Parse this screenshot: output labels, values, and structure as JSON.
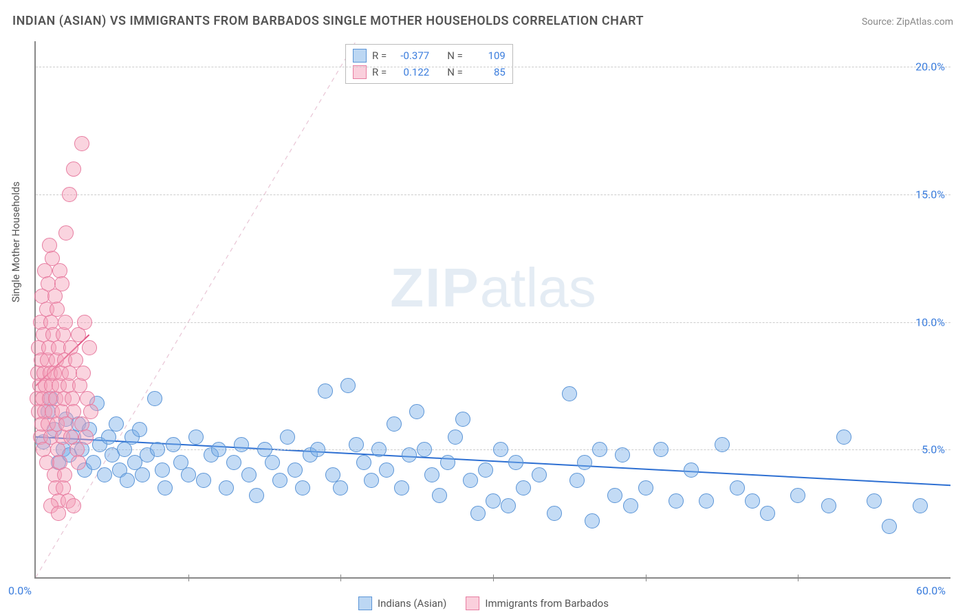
{
  "title": "INDIAN (ASIAN) VS IMMIGRANTS FROM BARBADOS SINGLE MOTHER HOUSEHOLDS CORRELATION CHART",
  "source": "Source: ZipAtlas.com",
  "ylabel": "Single Mother Households",
  "watermark_bold": "ZIP",
  "watermark_rest": "atlas",
  "chart": {
    "type": "scatter",
    "x_domain": [
      0,
      60
    ],
    "y_domain": [
      0,
      21
    ],
    "x_ticks_major": [
      0,
      60
    ],
    "x_ticks_minor": [
      10,
      20,
      30,
      40,
      50
    ],
    "x_tick_labels": {
      "0": "0.0%",
      "60": "60.0%"
    },
    "y_ticks": [
      5,
      10,
      15,
      20
    ],
    "y_tick_labels": {
      "5": "5.0%",
      "10": "10.0%",
      "15": "15.0%",
      "20": "20.0%"
    },
    "background_color": "#ffffff",
    "grid_color": "#cccccc",
    "axis_color": "#888888",
    "tick_label_color": "#3b7ddd",
    "marker_radius": 10,
    "series": [
      {
        "name": "Indians (Asian)",
        "key": "blue",
        "fill_color": "rgba(122,176,232,0.45)",
        "stroke_color": "#5a94d6",
        "R": "-0.377",
        "N": "109",
        "trend": {
          "x1": 0,
          "y1": 5.5,
          "x2": 60,
          "y2": 3.6,
          "color": "#2d6fd2",
          "width": 2
        },
        "diag": {
          "x1": 0,
          "y1": 0,
          "x2": 21,
          "y2": 21,
          "color": "#a8c6e8",
          "dash": true
        },
        "points": [
          [
            0.5,
            5.3
          ],
          [
            0.8,
            6.5
          ],
          [
            1.0,
            7.0
          ],
          [
            1.2,
            5.8
          ],
          [
            1.5,
            4.5
          ],
          [
            1.8,
            5.0
          ],
          [
            2.0,
            6.2
          ],
          [
            2.2,
            4.8
          ],
          [
            2.5,
            5.5
          ],
          [
            2.8,
            6.0
          ],
          [
            3.0,
            5.0
          ],
          [
            3.2,
            4.2
          ],
          [
            3.5,
            5.8
          ],
          [
            3.8,
            4.5
          ],
          [
            4.0,
            6.8
          ],
          [
            4.2,
            5.2
          ],
          [
            4.5,
            4.0
          ],
          [
            4.8,
            5.5
          ],
          [
            5.0,
            4.8
          ],
          [
            5.3,
            6.0
          ],
          [
            5.5,
            4.2
          ],
          [
            5.8,
            5.0
          ],
          [
            6.0,
            3.8
          ],
          [
            6.3,
            5.5
          ],
          [
            6.5,
            4.5
          ],
          [
            6.8,
            5.8
          ],
          [
            7.0,
            4.0
          ],
          [
            7.3,
            4.8
          ],
          [
            7.8,
            7.0
          ],
          [
            8.0,
            5.0
          ],
          [
            8.3,
            4.2
          ],
          [
            8.5,
            3.5
          ],
          [
            9.0,
            5.2
          ],
          [
            9.5,
            4.5
          ],
          [
            10.0,
            4.0
          ],
          [
            10.5,
            5.5
          ],
          [
            11.0,
            3.8
          ],
          [
            11.5,
            4.8
          ],
          [
            12.0,
            5.0
          ],
          [
            12.5,
            3.5
          ],
          [
            13.0,
            4.5
          ],
          [
            13.5,
            5.2
          ],
          [
            14.0,
            4.0
          ],
          [
            14.5,
            3.2
          ],
          [
            15.0,
            5.0
          ],
          [
            15.5,
            4.5
          ],
          [
            16.0,
            3.8
          ],
          [
            16.5,
            5.5
          ],
          [
            17.0,
            4.2
          ],
          [
            17.5,
            3.5
          ],
          [
            18.0,
            4.8
          ],
          [
            18.5,
            5.0
          ],
          [
            19.0,
            7.3
          ],
          [
            19.5,
            4.0
          ],
          [
            20.0,
            3.5
          ],
          [
            20.5,
            7.5
          ],
          [
            21.0,
            5.2
          ],
          [
            21.5,
            4.5
          ],
          [
            22.0,
            3.8
          ],
          [
            22.5,
            5.0
          ],
          [
            23.0,
            4.2
          ],
          [
            23.5,
            6.0
          ],
          [
            24.0,
            3.5
          ],
          [
            24.5,
            4.8
          ],
          [
            25.0,
            6.5
          ],
          [
            25.5,
            5.0
          ],
          [
            26.0,
            4.0
          ],
          [
            26.5,
            3.2
          ],
          [
            27.0,
            4.5
          ],
          [
            27.5,
            5.5
          ],
          [
            28.0,
            6.2
          ],
          [
            28.5,
            3.8
          ],
          [
            29.0,
            2.5
          ],
          [
            29.5,
            4.2
          ],
          [
            30.0,
            3.0
          ],
          [
            30.5,
            5.0
          ],
          [
            31.0,
            2.8
          ],
          [
            31.5,
            4.5
          ],
          [
            32.0,
            3.5
          ],
          [
            33.0,
            4.0
          ],
          [
            34.0,
            2.5
          ],
          [
            35.0,
            7.2
          ],
          [
            35.5,
            3.8
          ],
          [
            36.0,
            4.5
          ],
          [
            36.5,
            2.2
          ],
          [
            37.0,
            5.0
          ],
          [
            38.0,
            3.2
          ],
          [
            38.5,
            4.8
          ],
          [
            39.0,
            2.8
          ],
          [
            40.0,
            3.5
          ],
          [
            41.0,
            5.0
          ],
          [
            42.0,
            3.0
          ],
          [
            43.0,
            4.2
          ],
          [
            44.0,
            3.0
          ],
          [
            45.0,
            5.2
          ],
          [
            46.0,
            3.5
          ],
          [
            47.0,
            3.0
          ],
          [
            48.0,
            2.5
          ],
          [
            50.0,
            3.2
          ],
          [
            52.0,
            2.8
          ],
          [
            53.0,
            5.5
          ],
          [
            55.0,
            3.0
          ],
          [
            56.0,
            2.0
          ],
          [
            58.0,
            2.8
          ]
        ]
      },
      {
        "name": "Immigrants from Barbados",
        "key": "pink",
        "fill_color": "rgba(245,160,185,0.45)",
        "stroke_color": "#e77ca0",
        "R": "0.122",
        "N": "85",
        "trend": {
          "x1": 0,
          "y1": 7.5,
          "x2": 3.5,
          "y2": 9.5,
          "color": "#e05080",
          "width": 2
        },
        "diag": {
          "x1": 0,
          "y1": 0,
          "x2": 21,
          "y2": 21,
          "color": "#f2c2d0",
          "dash": true
        },
        "points": [
          [
            0.1,
            7.0
          ],
          [
            0.15,
            8.0
          ],
          [
            0.2,
            6.5
          ],
          [
            0.2,
            9.0
          ],
          [
            0.25,
            7.5
          ],
          [
            0.3,
            5.5
          ],
          [
            0.3,
            10.0
          ],
          [
            0.35,
            8.5
          ],
          [
            0.4,
            6.0
          ],
          [
            0.4,
            11.0
          ],
          [
            0.45,
            7.0
          ],
          [
            0.5,
            9.5
          ],
          [
            0.5,
            5.0
          ],
          [
            0.55,
            8.0
          ],
          [
            0.6,
            12.0
          ],
          [
            0.6,
            6.5
          ],
          [
            0.65,
            7.5
          ],
          [
            0.7,
            10.5
          ],
          [
            0.7,
            4.5
          ],
          [
            0.75,
            8.5
          ],
          [
            0.8,
            11.5
          ],
          [
            0.8,
            6.0
          ],
          [
            0.85,
            9.0
          ],
          [
            0.9,
            7.0
          ],
          [
            0.9,
            13.0
          ],
          [
            0.95,
            8.0
          ],
          [
            1.0,
            5.5
          ],
          [
            1.0,
            10.0
          ],
          [
            1.05,
            7.5
          ],
          [
            1.1,
            12.5
          ],
          [
            1.1,
            6.5
          ],
          [
            1.15,
            9.5
          ],
          [
            1.2,
            8.0
          ],
          [
            1.2,
            4.0
          ],
          [
            1.25,
            11.0
          ],
          [
            1.3,
            7.0
          ],
          [
            1.3,
            3.5
          ],
          [
            1.35,
            8.5
          ],
          [
            1.4,
            6.0
          ],
          [
            1.4,
            10.5
          ],
          [
            1.45,
            5.0
          ],
          [
            1.5,
            9.0
          ],
          [
            1.5,
            3.0
          ],
          [
            1.55,
            7.5
          ],
          [
            1.6,
            12.0
          ],
          [
            1.6,
            4.5
          ],
          [
            1.65,
            8.0
          ],
          [
            1.7,
            6.5
          ],
          [
            1.7,
            11.5
          ],
          [
            1.75,
            5.5
          ],
          [
            1.8,
            9.5
          ],
          [
            1.8,
            3.5
          ],
          [
            1.85,
            7.0
          ],
          [
            1.9,
            8.5
          ],
          [
            1.9,
            4.0
          ],
          [
            1.95,
            10.0
          ],
          [
            2.0,
            6.0
          ],
          [
            2.0,
            13.5
          ],
          [
            2.1,
            7.5
          ],
          [
            2.1,
            3.0
          ],
          [
            2.2,
            8.0
          ],
          [
            2.2,
            15.0
          ],
          [
            2.3,
            5.5
          ],
          [
            2.3,
            9.0
          ],
          [
            2.4,
            7.0
          ],
          [
            2.5,
            6.5
          ],
          [
            2.5,
            16.0
          ],
          [
            2.6,
            8.5
          ],
          [
            2.7,
            5.0
          ],
          [
            2.8,
            9.5
          ],
          [
            2.8,
            4.5
          ],
          [
            2.9,
            7.5
          ],
          [
            3.0,
            17.0
          ],
          [
            3.0,
            6.0
          ],
          [
            3.1,
            8.0
          ],
          [
            3.2,
            10.0
          ],
          [
            3.3,
            5.5
          ],
          [
            3.4,
            7.0
          ],
          [
            3.5,
            9.0
          ],
          [
            3.6,
            6.5
          ],
          [
            1.0,
            2.8
          ],
          [
            1.5,
            2.5
          ],
          [
            2.5,
            2.8
          ]
        ]
      }
    ]
  },
  "legend": {
    "blue_label": "Indians (Asian)",
    "pink_label": "Immigrants from Barbados"
  },
  "stats_box": {
    "r_label": "R =",
    "n_label": "N ="
  }
}
